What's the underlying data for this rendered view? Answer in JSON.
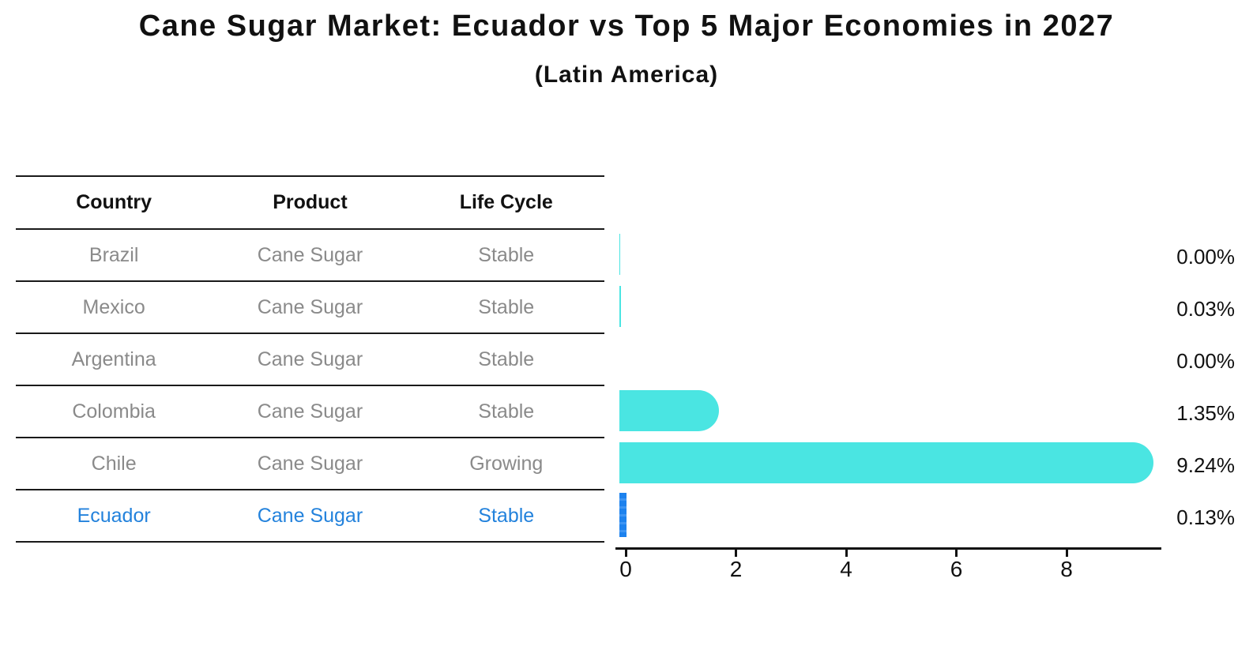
{
  "header": {
    "title": "Cane Sugar Market: Ecuador vs Top 5 Major Economies in 2027",
    "subtitle": "(Latin America)"
  },
  "table": {
    "columns": [
      "Country",
      "Product",
      "Life Cycle"
    ],
    "rows": [
      {
        "country": "Brazil",
        "product": "Cane Sugar",
        "life_cycle": "Stable",
        "highlight": false
      },
      {
        "country": "Mexico",
        "product": "Cane Sugar",
        "life_cycle": "Stable",
        "highlight": false
      },
      {
        "country": "Argentina",
        "product": "Cane Sugar",
        "life_cycle": "Stable",
        "highlight": false
      },
      {
        "country": "Colombia",
        "product": "Cane Sugar",
        "life_cycle": "Stable",
        "highlight": false
      },
      {
        "country": "Chile",
        "product": "Cane Sugar",
        "life_cycle": "Growing",
        "highlight": false
      },
      {
        "country": "Ecuador",
        "product": "Cane Sugar",
        "life_cycle": "Stable",
        "highlight": true
      }
    ]
  },
  "chart_data": {
    "type": "bar",
    "orientation": "horizontal",
    "title": "Cane Sugar Market: Ecuador vs Top 5 Major Economies in 2027",
    "subtitle": "(Latin America)",
    "categories": [
      "Brazil",
      "Mexico",
      "Argentina",
      "Colombia",
      "Chile",
      "Ecuador"
    ],
    "values": [
      0.002,
      0.03,
      0.0,
      1.35,
      9.24,
      0.13
    ],
    "value_labels": [
      "0.00%",
      "0.03%",
      "0.00%",
      "1.35%",
      "9.24%",
      "0.13%"
    ],
    "xlabel": "",
    "ylabel": "",
    "xlim": [
      0,
      9.7
    ],
    "x_ticks": [
      "0",
      "2",
      "4",
      "6",
      "8"
    ],
    "grid": false,
    "legend": false,
    "highlight_index": 5
  },
  "colors": {
    "bar_cyan": "#4AE5E2",
    "bar_blue": "#1D82EE",
    "bar_blue_light": "#3D95F4",
    "highlight_text": "#2382DC",
    "muted_text": "#8A8A8A",
    "axis": "#111111"
  }
}
